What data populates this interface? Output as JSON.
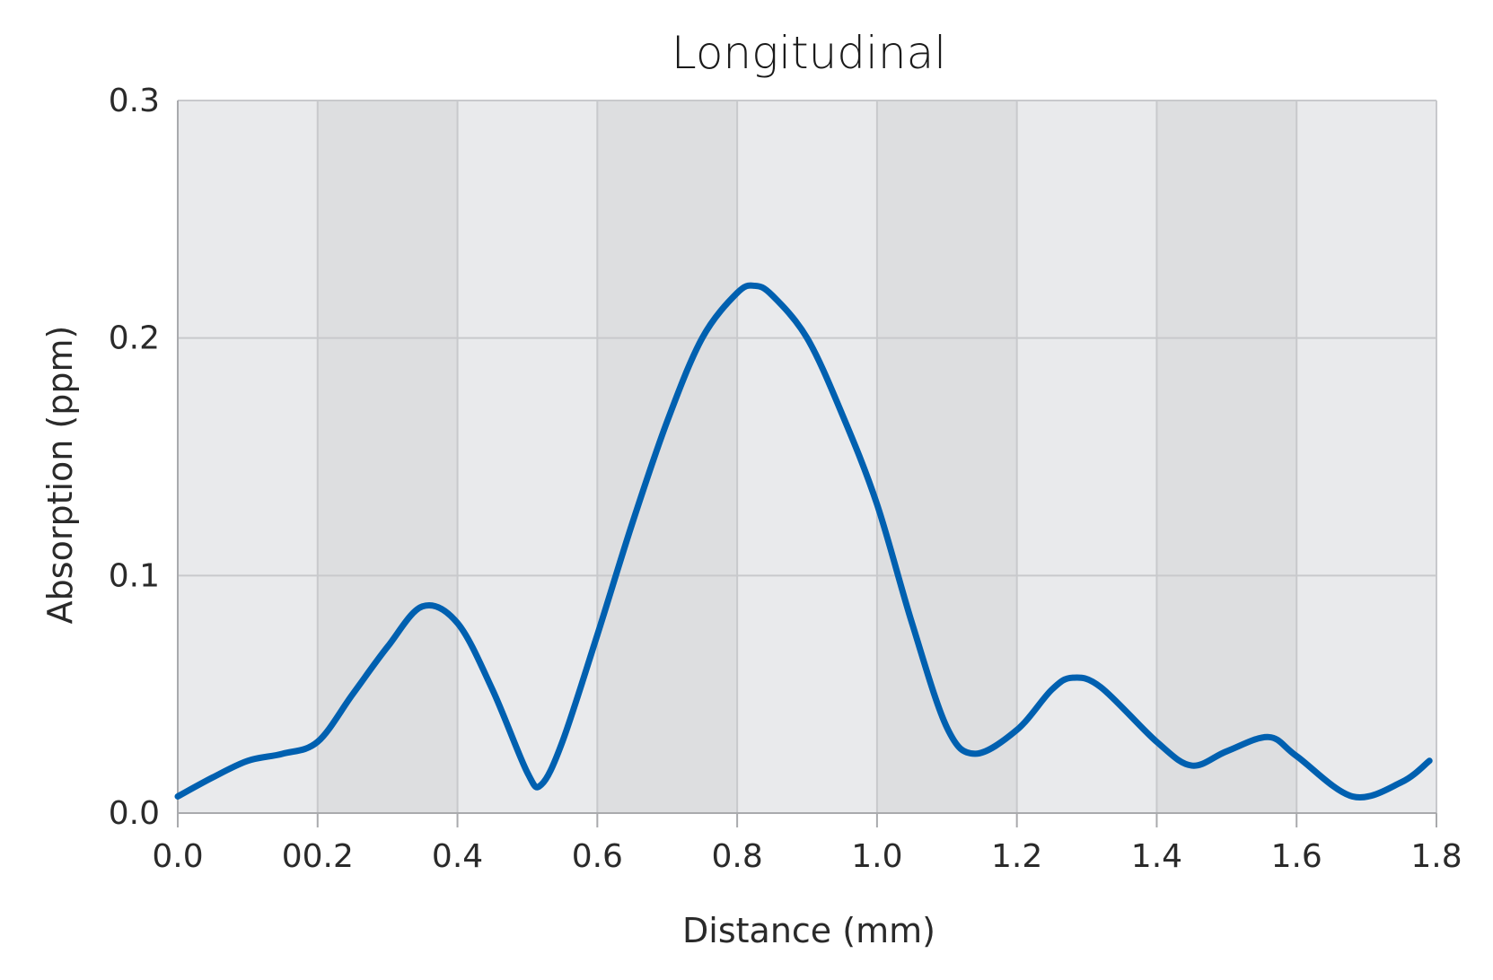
{
  "chart_data": {
    "type": "line",
    "title": "Longitudinal",
    "xlabel": "Distance (mm)",
    "ylabel": "Absorption (ppm)",
    "xlim": [
      0.0,
      1.8
    ],
    "ylim": [
      0.0,
      0.3
    ],
    "x_ticks": [
      0.0,
      0.2,
      0.4,
      0.6,
      0.8,
      1.0,
      1.2,
      1.4,
      1.6,
      1.8
    ],
    "x_tick_labels": [
      "0.0",
      "00.2",
      "0.4",
      "0.6",
      "0.8",
      "1.0",
      "1.2",
      "1.4",
      "1.6",
      "1.8"
    ],
    "y_ticks": [
      0.0,
      0.1,
      0.2,
      0.3
    ],
    "y_tick_labels": [
      "0.0",
      "0.1",
      "0.2",
      "0.3"
    ],
    "grid": true,
    "alternating_bands": true,
    "colors": {
      "line": "#0060b0",
      "band_light": "#e9eaec",
      "band_dark": "#dddee0",
      "grid": "#c8c9cc"
    },
    "series": [
      {
        "x": [
          0.0,
          0.05,
          0.1,
          0.15,
          0.2,
          0.25,
          0.3,
          0.35,
          0.4,
          0.45,
          0.5,
          0.52,
          0.55,
          0.6,
          0.65,
          0.7,
          0.75,
          0.8,
          0.825,
          0.85,
          0.9,
          0.95,
          1.0,
          1.05,
          1.1,
          1.14,
          1.2,
          1.25,
          1.28,
          1.32,
          1.4,
          1.45,
          1.5,
          1.56,
          1.6,
          1.68,
          1.75,
          1.79
        ],
        "values": [
          0.007,
          0.015,
          0.022,
          0.025,
          0.03,
          0.05,
          0.07,
          0.087,
          0.08,
          0.052,
          0.017,
          0.012,
          0.03,
          0.075,
          0.122,
          0.165,
          0.2,
          0.219,
          0.222,
          0.218,
          0.2,
          0.168,
          0.13,
          0.08,
          0.036,
          0.025,
          0.035,
          0.052,
          0.057,
          0.053,
          0.03,
          0.02,
          0.026,
          0.032,
          0.024,
          0.007,
          0.013,
          0.022
        ]
      }
    ]
  }
}
